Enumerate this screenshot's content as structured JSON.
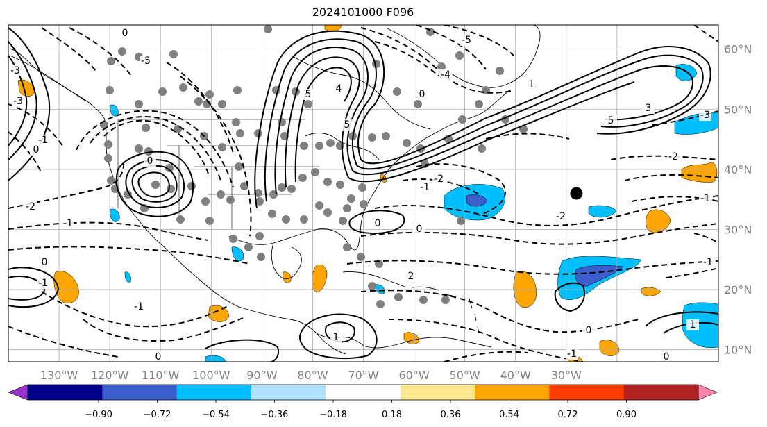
{
  "title": "2024101000 F096",
  "map": {
    "lon_range": [
      -140,
      0
    ],
    "lat_range": [
      8,
      64
    ],
    "lon_ticks": [
      "130°W",
      "120°W",
      "110°W",
      "100°W",
      "90°W",
      "80°W",
      "70°W",
      "60°W",
      "50°W",
      "40°W",
      "30°W"
    ],
    "lat_ticks": [
      "10°N",
      "20°N",
      "30°N",
      "40°N",
      "50°N",
      "60°N"
    ],
    "grid": true,
    "coastline_color": "#000000",
    "gridline_color": "#aaaaaa",
    "tick_label_color": "#808080"
  },
  "contour_labels": [
    "0",
    "-1",
    "-2",
    "-3",
    "-4",
    "-5",
    "1",
    "2",
    "3",
    "4",
    "5"
  ],
  "colorbar": {
    "ticks": [
      "−0.90",
      "−0.72",
      "−0.54",
      "−0.36",
      "−0.18",
      "0.18",
      "0.36",
      "0.54",
      "0.72",
      "0.90"
    ],
    "colors": [
      "#9932cc",
      "#00008b",
      "#3a5fcd",
      "#00bfff",
      "#b0e2ff",
      "#ffffff",
      "#ffe990",
      "#ffa500",
      "#ff3d00",
      "#b22222",
      "#ff82ab"
    ],
    "extend": "both"
  },
  "storm_marker": {
    "lon": -28,
    "lat": 36,
    "color": "#000000"
  },
  "shaded_regions": {
    "positive_color": "#ffa500",
    "negative_color": "#00bfff",
    "strong_negative_color": "#3a5fcd"
  }
}
